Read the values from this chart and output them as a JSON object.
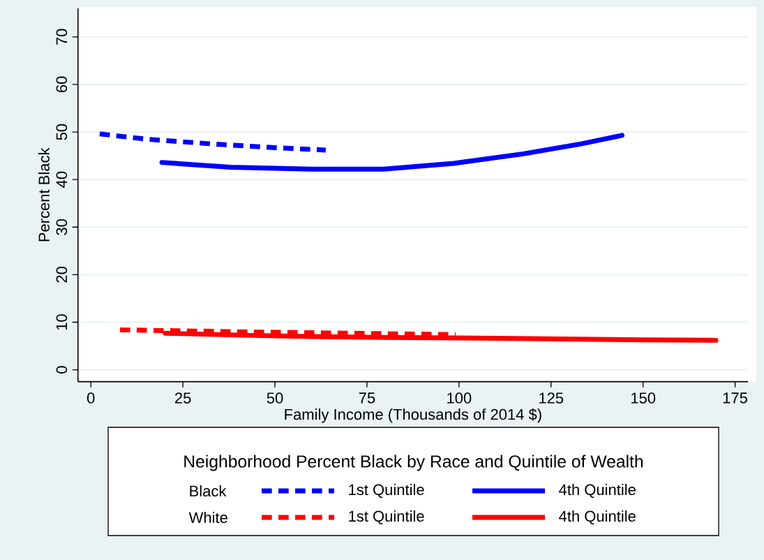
{
  "chart_data": {
    "type": "line",
    "xlabel": "Family Income (Thousands of 2014 $)",
    "ylabel": "Percent Black",
    "legend_title": "Neighborhood Percent Black by Race and Quintile of Wealth",
    "legend": "bottom",
    "annotations": [
      "Black",
      "White"
    ],
    "xlim": [
      -3.5,
      178.5
    ],
    "ylim": [
      -2.5,
      76
    ],
    "xticks": [
      0,
      25,
      50,
      75,
      100,
      125,
      150,
      175
    ],
    "yticks": [
      0,
      10,
      20,
      30,
      40,
      50,
      60,
      70
    ],
    "grid": "y",
    "series": [
      {
        "name": "1st Quintile",
        "color": "#0000ff",
        "line_style": "dashed",
        "x": [
          2.4,
          15,
          32.8,
          50,
          63.8
        ],
        "values": [
          49.6,
          48.5,
          47.5,
          46.7,
          46.2
        ]
      },
      {
        "name": "4th Quintile",
        "color": "#0000ff",
        "line_style": "solid",
        "x": [
          19.3,
          37.9,
          60,
          76.3,
          79.5,
          98.5,
          117.4,
          133.1,
          144.3
        ],
        "values": [
          43.6,
          42.6,
          42.2,
          42.2,
          42.2,
          43.4,
          45.4,
          47.5,
          49.3
        ]
      },
      {
        "name": "1st Quintile",
        "color": "#ff0000",
        "line_style": "dashed",
        "x": [
          7.9,
          40,
          70,
          99.1
        ],
        "values": [
          8.4,
          8.0,
          7.7,
          7.4
        ]
      },
      {
        "name": "4th Quintile",
        "color": "#ff0000",
        "line_style": "solid",
        "x": [
          20.2,
          40,
          60,
          80,
          100,
          125,
          150,
          169.8
        ],
        "values": [
          7.7,
          7.3,
          7.0,
          6.8,
          6.7,
          6.5,
          6.3,
          6.2
        ]
      }
    ]
  }
}
